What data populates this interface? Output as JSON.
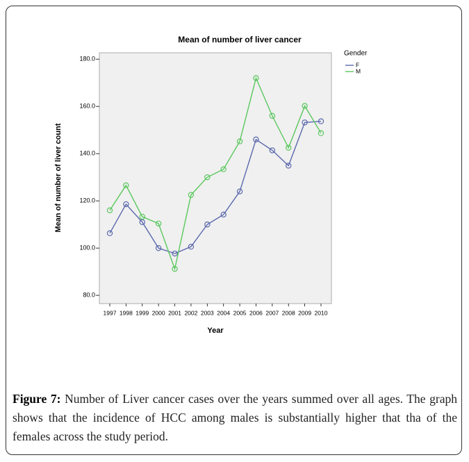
{
  "chart_data": {
    "type": "line",
    "title": "Mean of number of liver cancer",
    "xlabel": "Year",
    "ylabel": "Mean of number of liver count",
    "categories": [
      "1997",
      "1998",
      "1999",
      "2000",
      "2001",
      "2002",
      "2003",
      "2004",
      "2005",
      "2006",
      "2007",
      "2008",
      "2009",
      "2010"
    ],
    "series": [
      {
        "name": "F",
        "color": "#5a68ad",
        "values": [
          106.3,
          118.6,
          111,
          100,
          97.7,
          100.6,
          110,
          114.2,
          124,
          146,
          141.4,
          134.9,
          153.2,
          153.7
        ]
      },
      {
        "name": "M",
        "color": "#5ac75e",
        "values": [
          116,
          126.6,
          113.3,
          110.4,
          91.2,
          122.5,
          130,
          133.4,
          145.2,
          172,
          156,
          142.5,
          160.2,
          148.7
        ]
      }
    ],
    "legend_title": "Gender",
    "legend": "right",
    "ylim": [
      76.5,
      182.7
    ],
    "yticks": [
      {
        "value": 80,
        "label": "80.0"
      },
      {
        "value": 100,
        "label": "100.0"
      },
      {
        "value": 120,
        "label": "120.0"
      },
      {
        "value": 140,
        "label": "140.0"
      },
      {
        "value": 160,
        "label": "160.0"
      },
      {
        "value": 180,
        "label": "180.0"
      }
    ]
  },
  "caption_label": "Figure 7:",
  "caption": " Number of Liver cancer cases over the years summed over all ages. The graph shows that the incidence of HCC among males is substantially higher that tha of the females across the study period."
}
